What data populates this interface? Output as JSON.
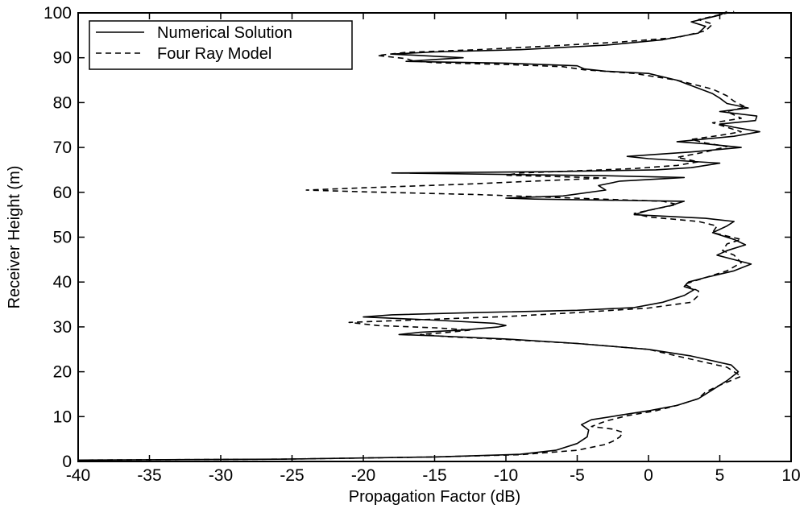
{
  "chart_data": {
    "type": "line",
    "xlabel": "Propagation Factor (dB)",
    "ylabel": "Receiver Height (m)",
    "xlim": [
      -40,
      10
    ],
    "ylim": [
      0,
      100
    ],
    "xticks": [
      -40,
      -35,
      -30,
      -25,
      -20,
      -15,
      -10,
      -5,
      0,
      5,
      10
    ],
    "yticks": [
      0,
      10,
      20,
      30,
      40,
      50,
      60,
      70,
      80,
      90,
      100
    ],
    "grid": false,
    "legend_position": "top-left",
    "series": [
      {
        "name": "Numerical Solution",
        "style": "solid",
        "points": [
          [
            -40,
            0.3
          ],
          [
            -26,
            0.5
          ],
          [
            -15,
            1.0
          ],
          [
            -9,
            1.6
          ],
          [
            -6.5,
            2.5
          ],
          [
            -5,
            4
          ],
          [
            -4.3,
            5.5
          ],
          [
            -4.2,
            7
          ],
          [
            -4.7,
            8.2
          ],
          [
            -4,
            9.3
          ],
          [
            -2,
            10.3
          ],
          [
            0,
            11.3
          ],
          [
            2,
            12.5
          ],
          [
            3.5,
            14
          ],
          [
            4.5,
            16
          ],
          [
            5.5,
            18
          ],
          [
            6.3,
            20
          ],
          [
            5.8,
            21.5
          ],
          [
            3,
            23.5
          ],
          [
            0,
            25
          ],
          [
            -5,
            26.3
          ],
          [
            -10,
            27.3
          ],
          [
            -15,
            28
          ],
          [
            -17.5,
            28.3
          ],
          [
            -16,
            28.8
          ],
          [
            -13,
            29.3
          ],
          [
            -10.5,
            30
          ],
          [
            -10,
            30.3
          ],
          [
            -10.8,
            30.8
          ],
          [
            -15,
            31.5
          ],
          [
            -20,
            32.2
          ],
          [
            -18,
            32.7
          ],
          [
            -12,
            33.2
          ],
          [
            -5,
            33.7
          ],
          [
            -1,
            34.3
          ],
          [
            1,
            35.5
          ],
          [
            2.5,
            37
          ],
          [
            3.2,
            38.3
          ],
          [
            2.5,
            39
          ],
          [
            2.8,
            40
          ],
          [
            4,
            41
          ],
          [
            6,
            42.5
          ],
          [
            7.2,
            44
          ],
          [
            6,
            45
          ],
          [
            4.8,
            46
          ],
          [
            5.5,
            47
          ],
          [
            6.8,
            48.3
          ],
          [
            6,
            49.5
          ],
          [
            4.5,
            51
          ],
          [
            5.5,
            52.5
          ],
          [
            6,
            53.5
          ],
          [
            4,
            54.2
          ],
          [
            -1,
            55
          ],
          [
            0,
            56
          ],
          [
            1.5,
            57
          ],
          [
            2.5,
            58
          ],
          [
            -8,
            58.5
          ],
          [
            -10,
            58.7
          ],
          [
            -6,
            59.2
          ],
          [
            -3,
            60.5
          ],
          [
            -3.5,
            61.5
          ],
          [
            -2,
            62.5
          ],
          [
            2.5,
            63.3
          ],
          [
            -3,
            63.7
          ],
          [
            -18,
            64.3
          ],
          [
            -7,
            64.6
          ],
          [
            0.5,
            65
          ],
          [
            3,
            65.5
          ],
          [
            5,
            66.5
          ],
          [
            0,
            67.5
          ],
          [
            -1.5,
            68
          ],
          [
            3,
            69
          ],
          [
            6.5,
            70
          ],
          [
            4,
            70.8
          ],
          [
            2,
            71.3
          ],
          [
            6,
            72.5
          ],
          [
            7.8,
            73.5
          ],
          [
            6,
            74.5
          ],
          [
            5,
            75.2
          ],
          [
            7.5,
            76
          ],
          [
            7.6,
            77
          ],
          [
            5,
            78
          ],
          [
            7,
            78.8
          ],
          [
            5.5,
            79.8
          ],
          [
            5,
            81
          ],
          [
            4.5,
            82
          ],
          [
            2,
            85
          ],
          [
            0,
            86.5
          ],
          [
            -3,
            87
          ],
          [
            -4.5,
            87.5
          ],
          [
            -5,
            88.2
          ],
          [
            -10,
            88.8
          ],
          [
            -17,
            89.2
          ],
          [
            -15,
            89.6
          ],
          [
            -13,
            90
          ],
          [
            -16,
            90.5
          ],
          [
            -18,
            90.8
          ],
          [
            -15,
            91.3
          ],
          [
            -9,
            91.8
          ],
          [
            -3,
            92.8
          ],
          [
            1,
            94
          ],
          [
            3.5,
            95.5
          ],
          [
            4,
            97
          ],
          [
            3,
            98
          ],
          [
            5,
            99.5
          ],
          [
            5.5,
            100.3
          ]
        ]
      },
      {
        "name": "Four Ray Model",
        "style": "dashed",
        "points": [
          [
            -40,
            0.3
          ],
          [
            -26,
            0.5
          ],
          [
            -15,
            1.0
          ],
          [
            -9,
            1.5
          ],
          [
            -5,
            2.5
          ],
          [
            -3,
            3.8
          ],
          [
            -2.5,
            4.5
          ],
          [
            -2,
            5.5
          ],
          [
            -1.8,
            6.5
          ],
          [
            -2.5,
            7.2
          ],
          [
            -4,
            7.8
          ],
          [
            -3,
            9
          ],
          [
            -1.5,
            10.2
          ],
          [
            0.5,
            11.3
          ],
          [
            2,
            12.5
          ],
          [
            3.5,
            14
          ],
          [
            4,
            15.5
          ],
          [
            5,
            17
          ],
          [
            6.5,
            19
          ],
          [
            5.5,
            21
          ],
          [
            2,
            23.5
          ],
          [
            0,
            25
          ],
          [
            -5,
            26.3
          ],
          [
            -10,
            27.2
          ],
          [
            -14,
            27.8
          ],
          [
            -16,
            28.3
          ],
          [
            -14,
            28.8
          ],
          [
            -12.5,
            29.3
          ],
          [
            -15,
            29.8
          ],
          [
            -19,
            30.3
          ],
          [
            -21,
            31
          ],
          [
            -16,
            31.6
          ],
          [
            -10,
            32.3
          ],
          [
            -5,
            33.2
          ],
          [
            0,
            34.2
          ],
          [
            3,
            35.5
          ],
          [
            3.5,
            37
          ],
          [
            3.5,
            38
          ],
          [
            2.5,
            39.5
          ],
          [
            4,
            41
          ],
          [
            5.5,
            42.5
          ],
          [
            6.5,
            44.3
          ],
          [
            6,
            46
          ],
          [
            5.2,
            47
          ],
          [
            5.5,
            48.5
          ],
          [
            6.5,
            49.5
          ],
          [
            4.5,
            51
          ],
          [
            4.8,
            52.5
          ],
          [
            3.5,
            53.5
          ],
          [
            0,
            54.5
          ],
          [
            -1,
            55.3
          ],
          [
            0.5,
            56.3
          ],
          [
            2,
            57.3
          ],
          [
            1,
            58
          ],
          [
            -6,
            58.8
          ],
          [
            -12,
            59.5
          ],
          [
            -20,
            60.1
          ],
          [
            -24,
            60.5
          ],
          [
            -20,
            61
          ],
          [
            -13,
            61.8
          ],
          [
            -8,
            62.5
          ],
          [
            -3,
            63.2
          ],
          [
            -10,
            63.8
          ],
          [
            -9,
            64.3
          ],
          [
            -5,
            64.8
          ],
          [
            -1,
            65.3
          ],
          [
            2,
            66
          ],
          [
            3.5,
            66.8
          ],
          [
            2,
            67.8
          ],
          [
            4,
            69
          ],
          [
            5.5,
            70.2
          ],
          [
            4,
            71
          ],
          [
            3,
            71.8
          ],
          [
            5,
            72.7
          ],
          [
            6.5,
            73.5
          ],
          [
            5.5,
            74.5
          ],
          [
            4.5,
            75.5
          ],
          [
            6.5,
            76.5
          ],
          [
            5.5,
            78
          ],
          [
            6.8,
            79
          ],
          [
            6,
            80.3
          ],
          [
            5.5,
            81.5
          ],
          [
            4.5,
            83
          ],
          [
            2,
            85
          ],
          [
            -1,
            86.5
          ],
          [
            -4.5,
            87.3
          ],
          [
            -6,
            88
          ],
          [
            -10,
            88.5
          ],
          [
            -15,
            88.9
          ],
          [
            -16.5,
            89.3
          ],
          [
            -17,
            89.8
          ],
          [
            -19,
            90.5
          ],
          [
            -17,
            91.2
          ],
          [
            -12,
            91.8
          ],
          [
            -7,
            92.6
          ],
          [
            -2,
            93.5
          ],
          [
            2,
            94.5
          ],
          [
            4,
            96
          ],
          [
            4.5,
            97.5
          ],
          [
            3.5,
            98.5
          ],
          [
            5,
            99.6
          ],
          [
            6,
            100.3
          ]
        ]
      }
    ]
  }
}
